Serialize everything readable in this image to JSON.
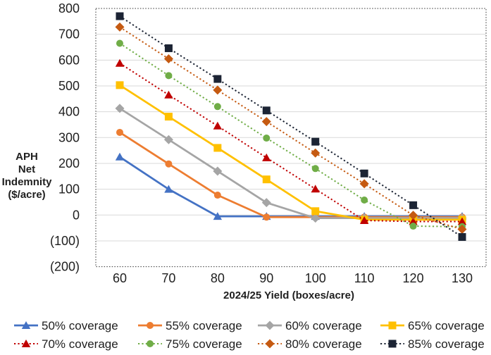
{
  "chart_data": {
    "type": "line",
    "title": "",
    "xlabel": "2024/25 Yield (boxes/acre)",
    "ylabel": "APH Net Indemnity ($/acre)",
    "ylabel_lines": [
      "APH",
      "Net",
      "Indemnity",
      "($/acre)"
    ],
    "x": [
      60,
      70,
      80,
      90,
      100,
      110,
      120,
      130
    ],
    "xtick_labels": [
      "60",
      "70",
      "80",
      "90",
      "100",
      "110",
      "120",
      "130"
    ],
    "ylim": [
      -200,
      800
    ],
    "yticks": {
      "values": [
        800,
        700,
        600,
        500,
        400,
        300,
        200,
        100,
        0,
        -100,
        -200
      ],
      "labels": [
        "800",
        "700",
        "600",
        "500",
        "400",
        "300",
        "200",
        "100",
        "0",
        "(100)",
        "(200)"
      ]
    },
    "grid": "horizontal",
    "gridline_color": "#D9D9D9",
    "plot_border_color": "#333333",
    "plot_border_style": "dotted",
    "legend_position": "bottom",
    "legend_rows": 2,
    "legend_columns": 4,
    "series": [
      {
        "name": "50% coverage",
        "color": "#4472C4",
        "marker": "triangle",
        "linestyle": "solid",
        "values": [
          225,
          100,
          -5,
          -5,
          -5,
          -5,
          -5,
          -5
        ]
      },
      {
        "name": "55% coverage",
        "color": "#ED7D31",
        "marker": "circle",
        "linestyle": "solid",
        "values": [
          320,
          198,
          77,
          -8,
          -8,
          -8,
          -8,
          -8
        ]
      },
      {
        "name": "60% coverage",
        "color": "#A5A5A5",
        "marker": "diamond",
        "linestyle": "solid",
        "values": [
          413,
          292,
          170,
          48,
          -12,
          -12,
          -12,
          -12
        ]
      },
      {
        "name": "65% coverage",
        "color": "#FFC000",
        "marker": "square",
        "linestyle": "solid",
        "values": [
          503,
          381,
          260,
          138,
          15,
          -18,
          -18,
          -18
        ]
      },
      {
        "name": "70% coverage",
        "color": "#C00000",
        "marker": "triangle",
        "linestyle": "dotted",
        "values": [
          588,
          465,
          345,
          222,
          101,
          -21,
          -25,
          -25
        ]
      },
      {
        "name": "75% coverage",
        "color": "#70AD47",
        "marker": "circle",
        "linestyle": "dotted",
        "values": [
          665,
          540,
          420,
          298,
          180,
          58,
          -43,
          -45
        ]
      },
      {
        "name": "80% coverage",
        "color": "#C55A11",
        "marker": "diamond",
        "linestyle": "dotted",
        "values": [
          728,
          605,
          484,
          362,
          240,
          121,
          -1,
          -55
        ]
      },
      {
        "name": "85% coverage",
        "color": "#1C2434",
        "marker": "square",
        "linestyle": "dotted",
        "values": [
          770,
          646,
          527,
          405,
          284,
          161,
          38,
          -85
        ]
      }
    ]
  }
}
